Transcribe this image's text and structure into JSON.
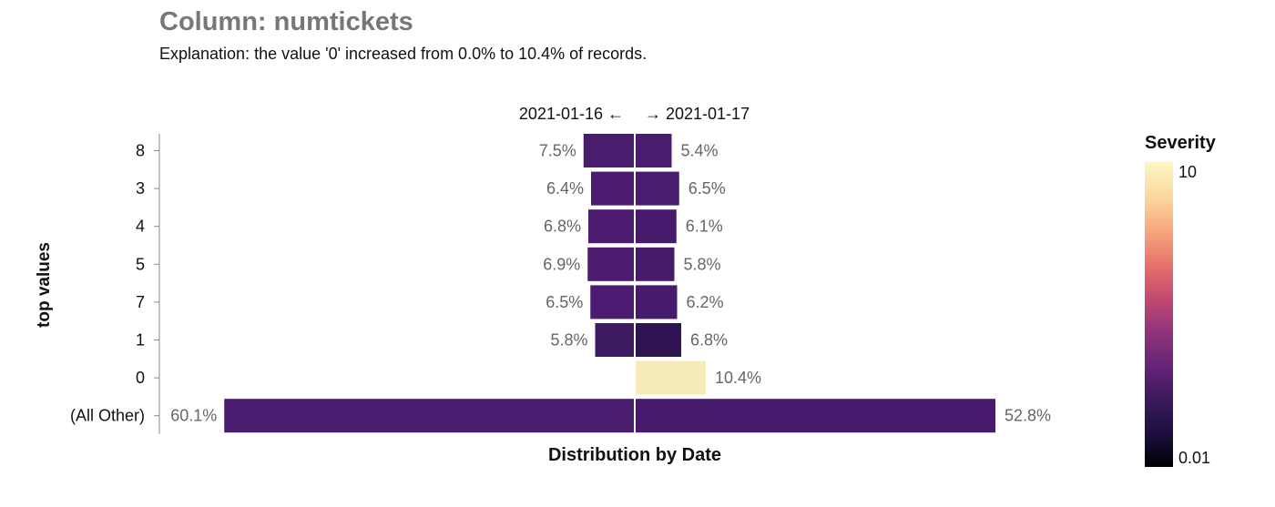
{
  "title": "Column: numtickets",
  "subtitle": "Explanation: the value '0' increased from 0.0% to 10.4% of records.",
  "chart_data": {
    "type": "bar",
    "layout": "diverging",
    "ylabel": "top values",
    "xlabel": "Distribution by Date",
    "left_header": "2021-01-16 ←",
    "right_header": "→ 2021-01-17",
    "categories": [
      "8",
      "3",
      "4",
      "5",
      "7",
      "1",
      "0",
      "(All Other)"
    ],
    "series": [
      {
        "name": "2021-01-16",
        "values": [
          7.5,
          6.4,
          6.8,
          6.9,
          6.5,
          5.8,
          0.0,
          60.1
        ],
        "labels": [
          "7.5%",
          "6.4%",
          "6.8%",
          "6.9%",
          "6.5%",
          "5.8%",
          "",
          "60.1%"
        ]
      },
      {
        "name": "2021-01-17",
        "values": [
          5.4,
          6.5,
          6.1,
          5.8,
          6.2,
          6.8,
          10.4,
          52.8
        ],
        "labels": [
          "5.4%",
          "6.5%",
          "6.1%",
          "5.8%",
          "6.2%",
          "6.8%",
          "10.4%",
          "52.8%"
        ]
      }
    ],
    "colors": {
      "left": [
        "#4a1c6e",
        "#4d1c71",
        "#4b1c70",
        "#4b1c6f",
        "#4d1c72",
        "#3e1a63",
        "#4a1c6e",
        "#4a1c6e"
      ],
      "right": [
        "#4a1c6e",
        "#4a1c6e",
        "#471b6c",
        "#451b6a",
        "#461b6b",
        "#2e1450",
        "#f7ebbb",
        "#461b6b"
      ]
    },
    "legend": {
      "title": "Severity",
      "max_label": "10",
      "min_label": "0.01",
      "position": "right",
      "gradient": [
        "#fcf7c4",
        "#fbd9a0",
        "#f6a97f",
        "#e8736b",
        "#c44b70",
        "#92337b",
        "#662478",
        "#3c1a5e",
        "#1c1040",
        "#000004"
      ]
    }
  }
}
